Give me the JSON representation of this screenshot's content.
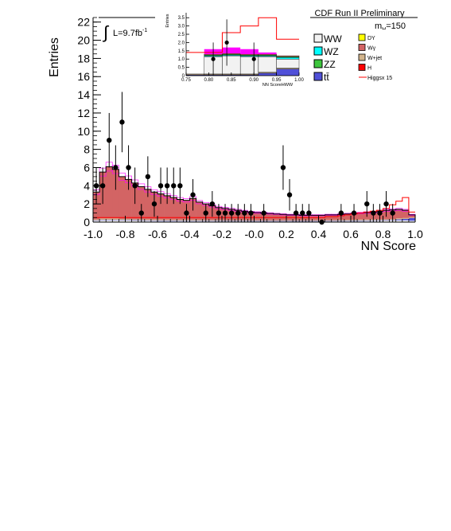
{
  "chart_data": {
    "type": "bar",
    "subtype": "stacked-histogram",
    "title": "CDF Run II Preliminary",
    "xlabel": "NN Score",
    "ylabel": "Entries",
    "xlim": [
      -1.0,
      1.0
    ],
    "ylim": [
      0,
      22.5
    ],
    "grid": false,
    "lumi_prefix": "∫",
    "lumi_label": "L=9.7fb",
    "lumi_exponent": "-1",
    "mass_label": "m",
    "mass_subscript": "H",
    "mass_value": "=150",
    "x_ticks": [
      -1.0,
      -0.8,
      -0.6,
      -0.4,
      -0.2,
      0.0,
      0.2,
      0.4,
      0.6,
      0.8,
      1.0
    ],
    "x_tick_labels": [
      "-1.0",
      "-0.8",
      "-0.6",
      "-0.4",
      "-0.2",
      "-0.0",
      "0.2",
      "0.4",
      "0.6",
      "0.8",
      "1.0"
    ],
    "y_ticks": [
      0,
      2,
      4,
      6,
      8,
      10,
      12,
      14,
      16,
      18,
      20,
      22
    ],
    "y_tick_labels": [
      "0",
      "2",
      "4",
      "6",
      "8",
      "10",
      "12",
      "14",
      "16",
      "18",
      "20",
      "22"
    ],
    "bin_edges": [
      -1.0,
      -0.96,
      -0.92,
      -0.88,
      -0.84,
      -0.8,
      -0.76,
      -0.72,
      -0.68,
      -0.64,
      -0.6,
      -0.56,
      -0.52,
      -0.48,
      -0.44,
      -0.4,
      -0.36,
      -0.32,
      -0.28,
      -0.24,
      -0.2,
      -0.16,
      -0.12,
      -0.08,
      -0.04,
      0.0,
      0.04,
      0.08,
      0.12,
      0.16,
      0.2,
      0.24,
      0.28,
      0.32,
      0.36,
      0.4,
      0.44,
      0.48,
      0.52,
      0.56,
      0.6,
      0.64,
      0.68,
      0.72,
      0.76,
      0.8,
      0.84,
      0.88,
      0.92,
      0.96,
      1.0
    ],
    "total_background": [
      3.3,
      5.5,
      6.1,
      5.8,
      5.0,
      4.7,
      4.3,
      3.9,
      3.6,
      3.3,
      3.1,
      2.9,
      2.7,
      2.5,
      2.4,
      2.6,
      2.2,
      2.0,
      1.8,
      1.6,
      1.5,
      1.4,
      1.3,
      1.2,
      1.1,
      1.05,
      1.0,
      0.95,
      0.9,
      0.85,
      0.8,
      0.8,
      0.75,
      0.75,
      0.75,
      0.75,
      0.8,
      0.8,
      0.85,
      0.9,
      0.95,
      1.0,
      1.05,
      1.1,
      1.2,
      1.3,
      1.35,
      1.4,
      1.3,
      0.8
    ],
    "background_components": [
      {
        "name": "WW",
        "color": "#f2f2f2",
        "values": [
          0.15,
          0.2,
          0.2,
          0.2,
          0.18,
          0.18,
          0.17,
          0.16,
          0.15,
          0.14,
          0.13,
          0.12,
          0.12,
          0.11,
          0.11,
          0.11,
          0.1,
          0.1,
          0.1,
          0.1,
          0.09,
          0.09,
          0.09,
          0.09,
          0.08,
          0.08,
          0.08,
          0.08,
          0.08,
          0.08,
          0.08,
          0.08,
          0.08,
          0.08,
          0.08,
          0.08,
          0.09,
          0.09,
          0.1,
          0.11,
          0.12,
          0.13,
          0.14,
          0.15,
          0.16,
          0.17,
          0.18,
          0.2,
          0.2,
          0.15
        ]
      },
      {
        "name": "WZ",
        "color": "#00ffff",
        "values": [
          0,
          0,
          0,
          0,
          0,
          0,
          0,
          0,
          0,
          0,
          0,
          0,
          0,
          0,
          0,
          0,
          0,
          0,
          0,
          0,
          0,
          0,
          0,
          0,
          0,
          0,
          0,
          0,
          0,
          0,
          0,
          0,
          0,
          0,
          0,
          0,
          0,
          0,
          0,
          0,
          0,
          0,
          0,
          0,
          0,
          0,
          0,
          0,
          0,
          0
        ]
      },
      {
        "name": "ZZ",
        "color": "#3dc63d",
        "values": [
          0,
          0,
          0,
          0,
          0,
          0,
          0,
          0,
          0,
          0,
          0,
          0,
          0,
          0,
          0,
          0,
          0,
          0,
          0,
          0,
          0,
          0,
          0,
          0,
          0,
          0,
          0,
          0,
          0,
          0,
          0,
          0,
          0,
          0,
          0,
          0,
          0,
          0,
          0,
          0,
          0,
          0,
          0,
          0,
          0,
          0,
          0,
          0,
          0,
          0
        ]
      },
      {
        "name": "tt̄",
        "color": "#5050d8",
        "values": [
          0.05,
          0.05,
          0.05,
          0.05,
          0.05,
          0.05,
          0.05,
          0.05,
          0.05,
          0.05,
          0.05,
          0.05,
          0.05,
          0.05,
          0.05,
          0.05,
          0.05,
          0.05,
          0.05,
          0.05,
          0.05,
          0.05,
          0.05,
          0.05,
          0.05,
          0.05,
          0.05,
          0.05,
          0.05,
          0.05,
          0.05,
          0.05,
          0.05,
          0.05,
          0.05,
          0.05,
          0.05,
          0.05,
          0.05,
          0.05,
          0.05,
          0.05,
          0.05,
          0.05,
          0.05,
          0.05,
          0.05,
          0.1,
          0.15,
          0.3
        ]
      },
      {
        "name": "DY",
        "color": "#ffff00",
        "values": [
          0,
          0,
          0,
          0,
          0,
          0,
          0,
          0,
          0,
          0,
          0,
          0,
          0,
          0,
          0,
          0,
          0,
          0,
          0,
          0,
          0,
          0,
          0,
          0,
          0,
          0,
          0,
          0,
          0,
          0,
          0,
          0,
          0,
          0,
          0,
          0,
          0,
          0,
          0,
          0,
          0,
          0,
          0,
          0,
          0,
          0,
          0,
          0,
          0,
          0
        ]
      },
      {
        "name": "Wγ",
        "color": "#d36464",
        "values": [
          3.0,
          5.1,
          5.7,
          5.4,
          4.65,
          4.35,
          3.97,
          3.58,
          3.29,
          3.0,
          2.81,
          2.62,
          2.42,
          2.23,
          2.13,
          2.33,
          1.94,
          1.75,
          1.55,
          1.35,
          1.26,
          1.16,
          1.06,
          0.96,
          0.87,
          0.82,
          0.77,
          0.72,
          0.67,
          0.62,
          0.57,
          0.57,
          0.52,
          0.52,
          0.52,
          0.52,
          0.56,
          0.56,
          0.6,
          0.64,
          0.68,
          0.72,
          0.76,
          0.8,
          0.89,
          0.98,
          1.02,
          0.98,
          0.85,
          0.3
        ]
      },
      {
        "name": "W+jet",
        "color": "#d2b48c",
        "values": [
          0.1,
          0.15,
          0.15,
          0.15,
          0.12,
          0.12,
          0.11,
          0.11,
          0.11,
          0.11,
          0.11,
          0.11,
          0.11,
          0.11,
          0.11,
          0.11,
          0.11,
          0.1,
          0.1,
          0.1,
          0.1,
          0.1,
          0.1,
          0.1,
          0.1,
          0.1,
          0.1,
          0.1,
          0.1,
          0.1,
          0.1,
          0.1,
          0.1,
          0.1,
          0.1,
          0.1,
          0.1,
          0.1,
          0.1,
          0.1,
          0.1,
          0.1,
          0.1,
          0.1,
          0.1,
          0.1,
          0.1,
          0.12,
          0.1,
          0.05
        ]
      }
    ],
    "uncertainty_band": {
      "color": "#ff00ff",
      "relative": 0.08
    },
    "signal": {
      "name": "Higgsx 15",
      "color": "#ff0000",
      "values": [
        0.5,
        0.5,
        0.5,
        0.5,
        0.5,
        0.5,
        0.5,
        0.5,
        0.5,
        0.5,
        0.5,
        0.5,
        0.5,
        0.5,
        0.5,
        0.5,
        0.5,
        0.5,
        0.5,
        0.5,
        0.5,
        0.5,
        0.5,
        0.5,
        0.5,
        0.5,
        0.5,
        0.5,
        0.5,
        0.5,
        0.5,
        0.5,
        0.5,
        0.5,
        0.5,
        0.5,
        0.6,
        0.6,
        0.7,
        0.8,
        0.9,
        1.0,
        1.1,
        1.2,
        1.3,
        1.5,
        1.9,
        2.3,
        2.7,
        1.1
      ]
    },
    "data_points": {
      "name": "Data",
      "x": [
        -0.98,
        -0.94,
        -0.9,
        -0.86,
        -0.82,
        -0.78,
        -0.74,
        -0.7,
        -0.66,
        -0.62,
        -0.58,
        -0.54,
        -0.5,
        -0.46,
        -0.42,
        -0.38,
        -0.3,
        -0.26,
        -0.22,
        -0.18,
        -0.14,
        -0.1,
        -0.06,
        -0.02,
        0.06,
        0.18,
        0.22,
        0.26,
        0.3,
        0.34,
        0.42,
        0.54,
        0.62,
        0.7,
        0.74,
        0.78,
        0.82,
        0.86
      ],
      "y": [
        4,
        4,
        9,
        6,
        11,
        6,
        4,
        1,
        5,
        2,
        4,
        4,
        4,
        4,
        1,
        3,
        1,
        2,
        1,
        1,
        1,
        1,
        1,
        1,
        1,
        6,
        3,
        1,
        1,
        1,
        0,
        1,
        1,
        2,
        1,
        1,
        2,
        1
      ]
    },
    "legend": {
      "placement": "top-right",
      "col1": [
        {
          "label": "WW",
          "color": "#f2f2f2"
        },
        {
          "label": "WZ",
          "color": "#00ffff"
        },
        {
          "label": "ZZ",
          "color": "#3dc63d"
        },
        {
          "label": "tt̄",
          "color": "#5050d8"
        }
      ],
      "col2": [
        {
          "label": "DY",
          "color": "#ffff00"
        },
        {
          "label": "Wγ",
          "color": "#d36464"
        },
        {
          "label": "W+jet",
          "color": "#d2b48c"
        },
        {
          "label": "H",
          "color": "#ff0000"
        },
        {
          "label": "Higgsx 15",
          "color": "#ff0000",
          "line": true
        }
      ]
    },
    "inset": {
      "xlabel": "NN ScoreHWW",
      "ylabel": "Entries",
      "xlim": [
        0.75,
        1.0
      ],
      "ylim": [
        0,
        3.8
      ],
      "x_ticks": [
        0.75,
        0.8,
        0.85,
        0.9,
        0.95,
        1.0
      ],
      "x_tick_labels": [
        "0.75",
        "0.80",
        "0.85",
        "0.90",
        "0.95",
        "1.00"
      ],
      "y_ticks": [
        0,
        0.5,
        1.0,
        1.5,
        2.0,
        2.5,
        3.0,
        3.5
      ],
      "y_tick_labels": [
        "0",
        "0.5",
        "1.0",
        "1.5",
        "2.0",
        "2.5",
        "3.0",
        "3.5"
      ],
      "bin_edges": [
        0.75,
        0.79,
        0.83,
        0.87,
        0.91,
        0.95,
        1.0
      ],
      "stack": [
        {
          "name": "tt̄",
          "color": "#5050d8",
          "values": [
            0.05,
            0.05,
            0.05,
            0.05,
            0.15,
            0.4
          ]
        },
        {
          "name": "W+jet",
          "color": "#d2b48c",
          "values": [
            0.05,
            0.05,
            0.05,
            0.05,
            0.05,
            0.05
          ]
        },
        {
          "name": "WW",
          "color": "#f2f2f2",
          "values": [
            0,
            1.05,
            1.1,
            1.05,
            0.95,
            0.55
          ]
        },
        {
          "name": "WZ",
          "color": "#00ffff",
          "values": [
            0,
            0.05,
            0.05,
            0.05,
            0.05,
            0.1
          ]
        },
        {
          "name": "ZZ",
          "color": "#3dc63d",
          "values": [
            0,
            0.05,
            0.05,
            0.05,
            0.05,
            0.05
          ]
        },
        {
          "name": "Wγ",
          "color": "#d36464",
          "values": [
            0,
            0.05,
            0.05,
            0.05,
            0.05,
            0.05
          ]
        }
      ],
      "band_values": [
        0,
        1.6,
        1.7,
        1.6,
        1.4,
        1.0
      ],
      "signal_values": [
        1.4,
        1.4,
        2.6,
        3.0,
        3.5,
        2.2
      ],
      "data_points": {
        "x": [
          0.81,
          0.84,
          0.9
        ],
        "y": [
          1.0,
          2.0,
          1.0
        ],
        "err": [
          1.0,
          1.4,
          1.0
        ]
      }
    }
  }
}
